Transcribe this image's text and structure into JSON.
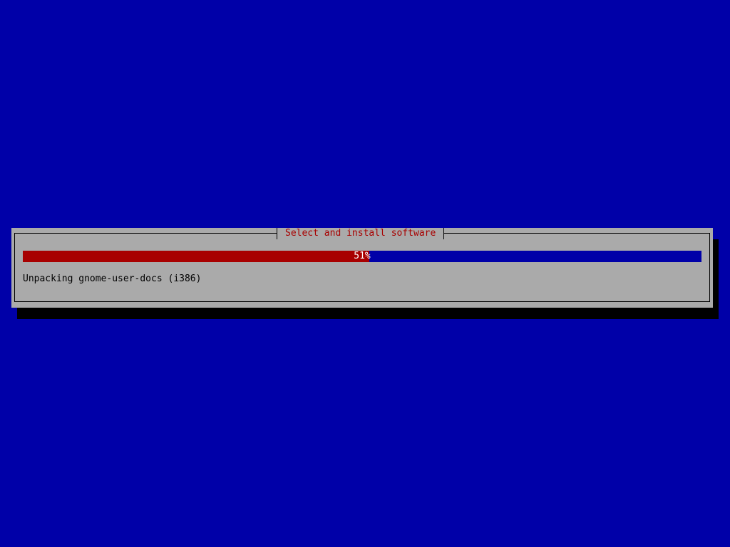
{
  "dialog": {
    "title": "Select and install software",
    "progress": {
      "percent": 51,
      "label": "51%"
    },
    "status": "Unpacking gnome-user-docs (i386)"
  },
  "colors": {
    "background": "#0000a8",
    "dialog": "#aaaaaa",
    "title": "#a80000",
    "progress_fill": "#a80000",
    "progress_track": "#0000a8"
  }
}
